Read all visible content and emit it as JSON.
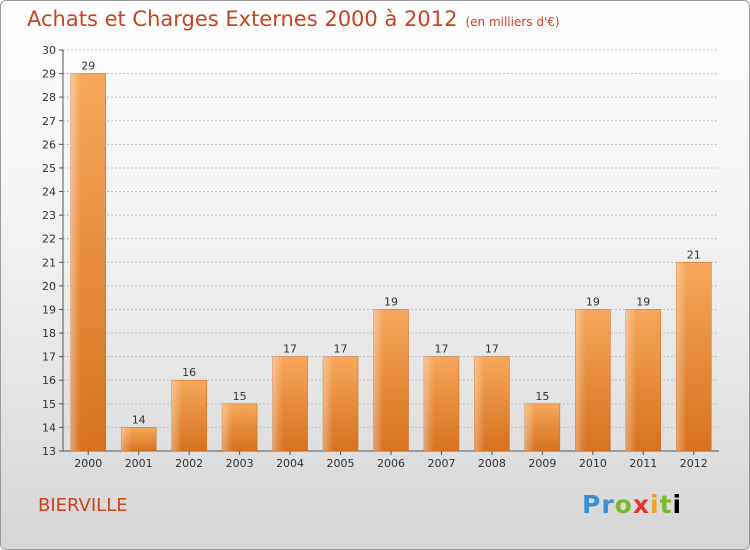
{
  "header": {
    "title": "Achats et Charges Externes 2000 à 2012",
    "subtitle": "(en milliers d'€)"
  },
  "footer": {
    "commune": "BIERVILLE",
    "logo": "Proxiti"
  },
  "colors": {
    "title": "#c8431f",
    "bar_light": "#f6a556",
    "bar_dark": "#d87323",
    "grid": "#bfbfbf"
  },
  "chart_data": {
    "type": "bar",
    "title": "Achats et Charges Externes 2000 à 2012",
    "subtitle": "(en milliers d'€)",
    "categories": [
      "2000",
      "2001",
      "2002",
      "2003",
      "2004",
      "2005",
      "2006",
      "2007",
      "2008",
      "2009",
      "2010",
      "2011",
      "2012"
    ],
    "values": [
      29,
      14,
      16,
      15,
      17,
      17,
      19,
      17,
      17,
      15,
      19,
      19,
      21
    ],
    "ylim": [
      13,
      30
    ],
    "yticks": [
      13,
      14,
      15,
      16,
      17,
      18,
      19,
      20,
      21,
      22,
      23,
      24,
      25,
      26,
      27,
      28,
      29,
      30
    ],
    "grid": true,
    "xlabel": "",
    "ylabel": ""
  }
}
